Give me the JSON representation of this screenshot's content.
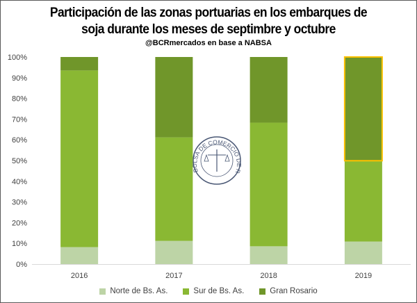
{
  "chart_data": {
    "type": "bar",
    "stacked": true,
    "title": "Participación de las zonas portuarias en los embarques de soja durante los meses de septimbre y octubre",
    "title_lines": [
      "Participación de las zonas portuarias en los embarques de",
      "soja durante los meses de septimbre y octubre"
    ],
    "subtitle": "@BCRmercados en base a NABSA",
    "categories": [
      "2016",
      "2017",
      "2018",
      "2019"
    ],
    "series": [
      {
        "name": "Norte de Bs. As.",
        "color": "#bdd4a6",
        "values": [
          8.2,
          11.2,
          8.6,
          10.9
        ]
      },
      {
        "name": "Sur de Bs. As.",
        "color": "#8ab833",
        "values": [
          85.3,
          50.0,
          59.7,
          39.0
        ]
      },
      {
        "name": "Gran Rosario",
        "color": "#70962a",
        "values": [
          6.5,
          38.8,
          31.7,
          50.1
        ]
      }
    ],
    "yticks": [
      "0%",
      "10%",
      "20%",
      "30%",
      "40%",
      "50%",
      "60%",
      "70%",
      "80%",
      "90%",
      "100%"
    ],
    "ylim": [
      0,
      100
    ],
    "xlabel": "",
    "ylabel": "",
    "grid": false,
    "legend_position": "bottom",
    "highlight": {
      "category": "2019",
      "series": "Gran Rosario",
      "color": "#ffc000"
    }
  },
  "watermark": {
    "text": "BOLSA DE COMERCIO DE ROSARIO"
  }
}
